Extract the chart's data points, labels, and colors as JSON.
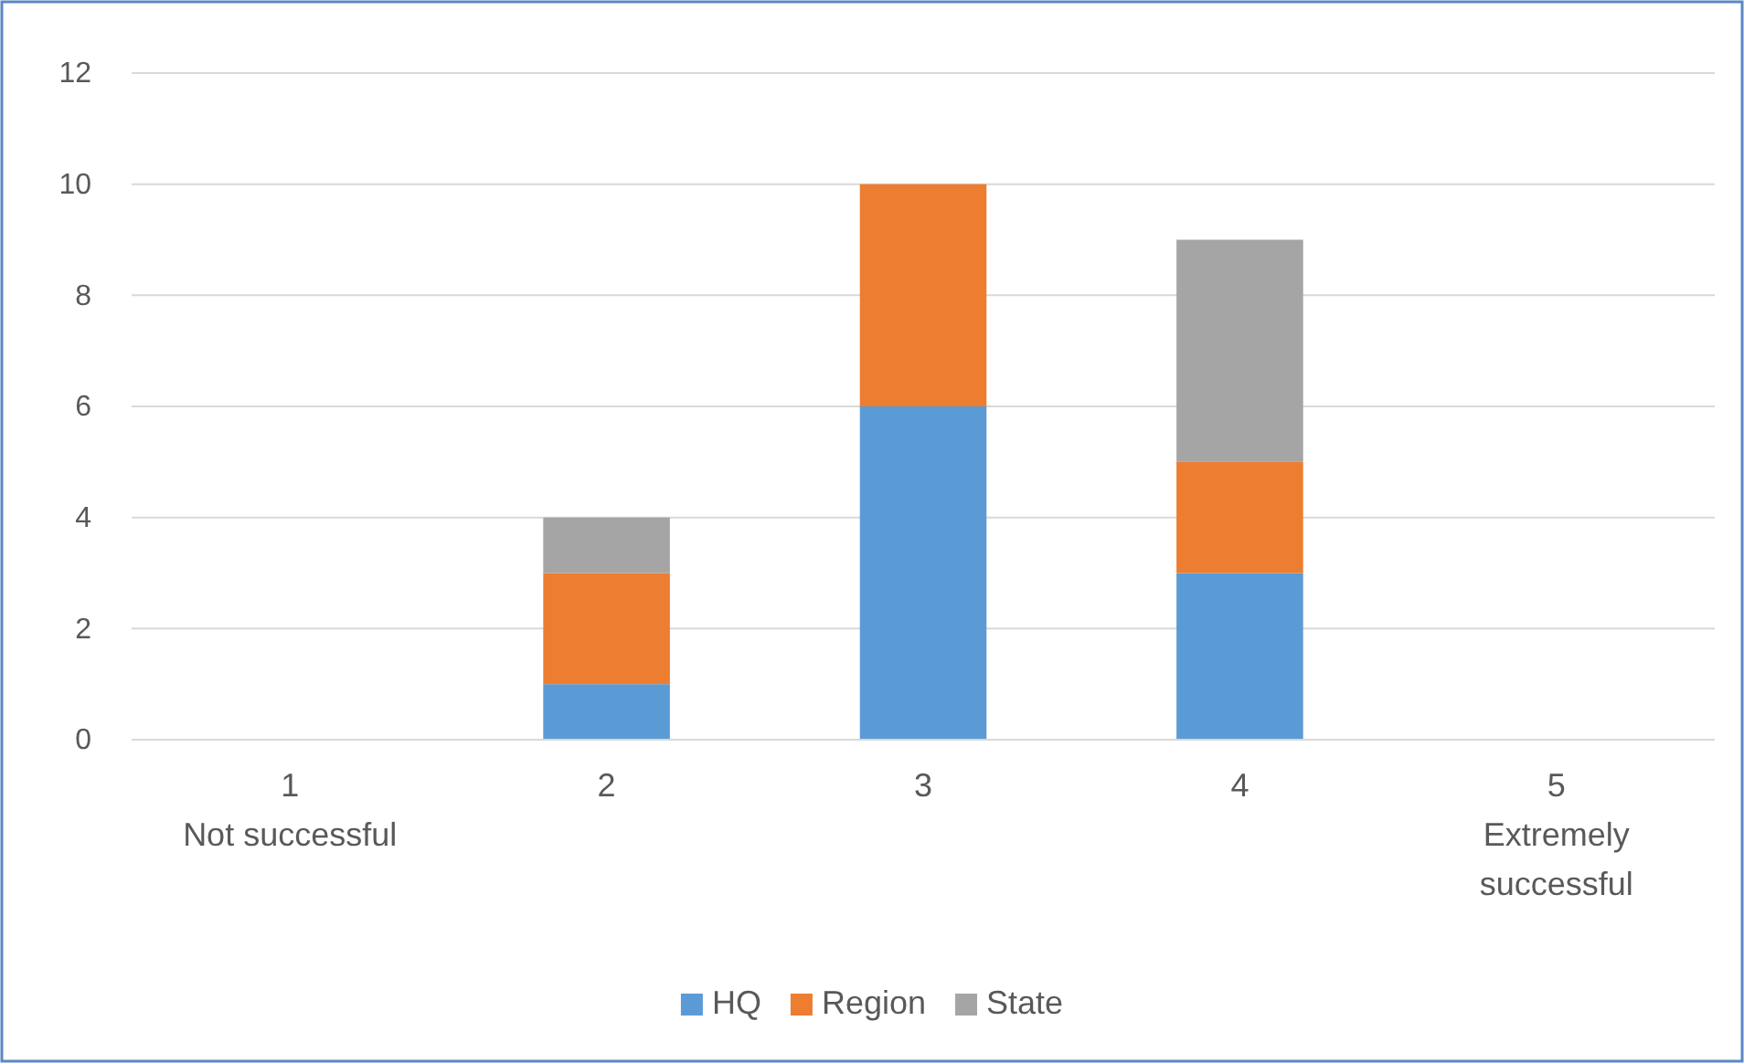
{
  "chart_data": {
    "type": "bar",
    "stacked": true,
    "categories": [
      "1\nNot successful",
      "2",
      "3",
      "4",
      "5\nExtremely successful"
    ],
    "series": [
      {
        "name": "HQ",
        "color": "#5b9bd5",
        "values": [
          0,
          1,
          6,
          3,
          0
        ]
      },
      {
        "name": "Region",
        "color": "#ed7d31",
        "values": [
          0,
          2,
          4,
          2,
          0
        ]
      },
      {
        "name": "State",
        "color": "#a5a5a5",
        "values": [
          0,
          1,
          0,
          4,
          0
        ]
      }
    ],
    "ylim": [
      0,
      12
    ],
    "yticks": [
      0,
      2,
      4,
      6,
      8,
      10,
      12
    ],
    "grid": "y",
    "legend": "bottom"
  }
}
